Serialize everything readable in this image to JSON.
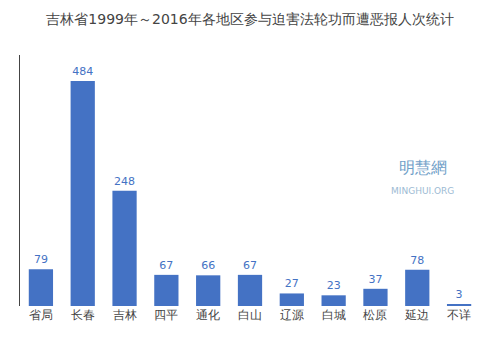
{
  "chart_data": {
    "type": "bar",
    "title": "吉林省1999年～2016年各地区参与迫害法轮功而遭恶报人次统计",
    "categories": [
      "省局",
      "长春",
      "吉林",
      "四平",
      "通化",
      "白山",
      "辽源",
      "白城",
      "松原",
      "延边",
      "不详"
    ],
    "values": [
      79,
      484,
      248,
      67,
      66,
      67,
      27,
      23,
      37,
      78,
      3
    ],
    "color": "#4472C4",
    "ylim": [
      0,
      540
    ],
    "grid": false,
    "data_labels": true,
    "tick_labels": "x",
    "annotations": [
      "明慧網",
      "MINGHUI.ORG"
    ]
  }
}
